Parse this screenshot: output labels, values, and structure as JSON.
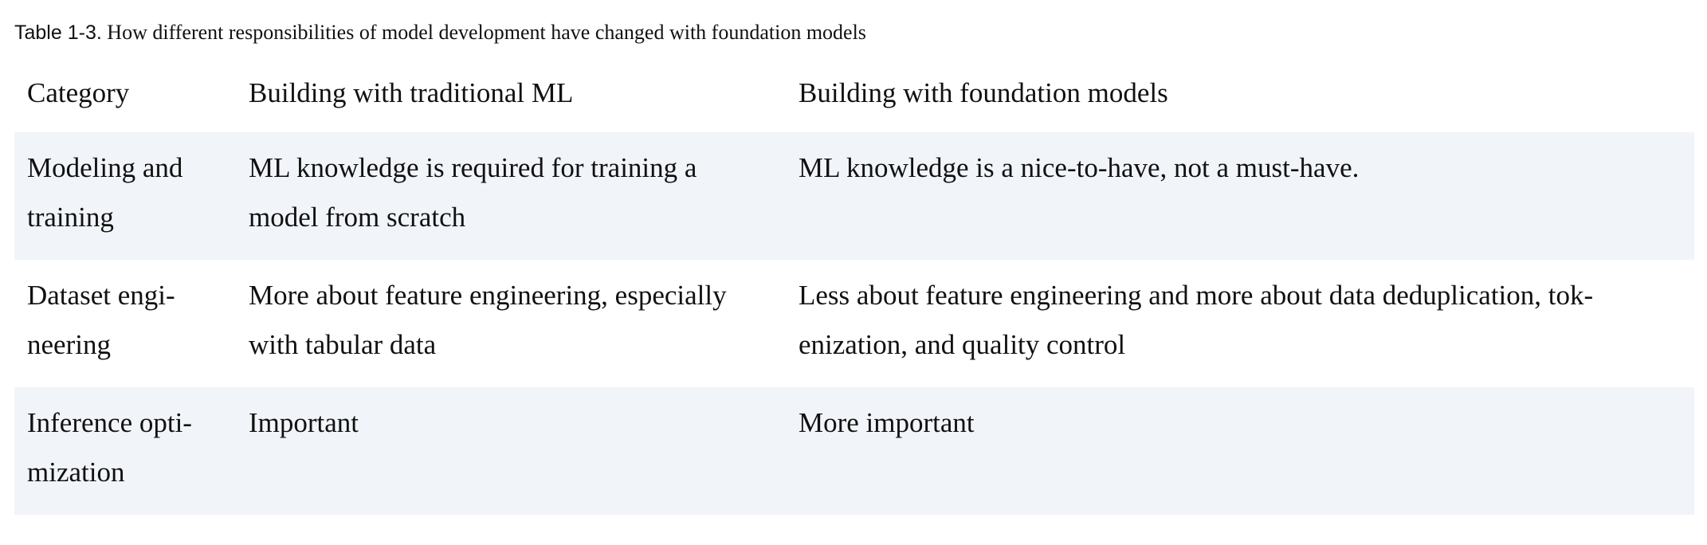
{
  "caption": {
    "label": "Table 1-3.",
    "text": "How different responsibilities of model development have changed with foundation models"
  },
  "table": {
    "headers": [
      "Category",
      "Building with traditional ML",
      "Building with foundation models"
    ],
    "rows": [
      [
        "Modeling and training",
        "ML knowledge is required for training a model from scratch",
        "ML knowledge is a nice-to-have, not a must-have."
      ],
      [
        "Dataset engi-neering",
        "More about feature engineering, especially with tabular data",
        "Less about feature engineering and more about data deduplication, tok-enization, and quality control"
      ],
      [
        "Inference opti-mization",
        "Important",
        "More important"
      ]
    ]
  },
  "colors": {
    "row_shade": "#f1f4f9",
    "text": "#111111"
  }
}
